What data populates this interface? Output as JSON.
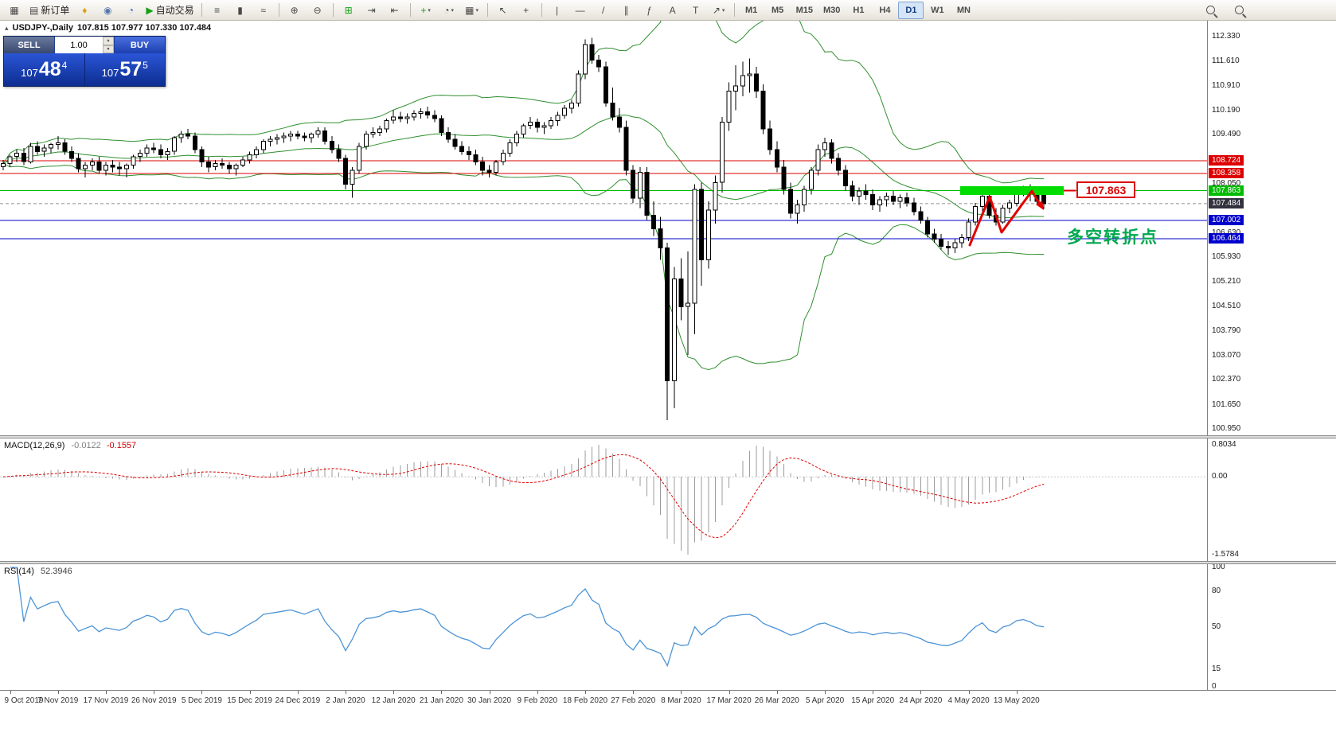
{
  "toolbar": {
    "items": [
      {
        "name": "new-chart",
        "glyph": "▦"
      },
      {
        "name": "new-order",
        "glyph": "▤",
        "label": "新订单"
      },
      {
        "name": "favorites",
        "glyph": "♦",
        "glyph_color": "#d8a018"
      },
      {
        "name": "profile",
        "glyph": "◉",
        "glyph_color": "#5577aa"
      },
      {
        "name": "community",
        "glyph": "◔",
        "glyph_color": "#3366cc"
      },
      {
        "name": "autotrading",
        "glyph": "▶",
        "glyph_color": "#16a016",
        "label": "自动交易"
      },
      {
        "sep": true
      },
      {
        "name": "bar-chart-mode",
        "glyph": "≡"
      },
      {
        "name": "candle-chart-mode",
        "glyph": "▮"
      },
      {
        "name": "line-chart-mode",
        "glyph": "≈"
      },
      {
        "sep": true
      },
      {
        "name": "zoom-in",
        "glyph": "⊕"
      },
      {
        "name": "zoom-out",
        "glyph": "⊖"
      },
      {
        "sep": true
      },
      {
        "name": "tile-windows",
        "glyph": "⊞",
        "glyph_color": "#16a016"
      },
      {
        "name": "auto-scroll",
        "glyph": "⇥"
      },
      {
        "name": "chart-shift",
        "glyph": "⇤"
      },
      {
        "sep": true
      },
      {
        "name": "indicators",
        "glyph": "+",
        "glyph_color": "#16a016",
        "caret": true
      },
      {
        "name": "periods",
        "glyph": "◔",
        "caret": true
      },
      {
        "name": "templates",
        "glyph": "▦",
        "caret": true
      },
      {
        "sep": true
      },
      {
        "name": "cursor",
        "glyph": "↖"
      },
      {
        "name": "crosshair",
        "glyph": "+"
      },
      {
        "sep": true
      },
      {
        "name": "vertical-line",
        "glyph": "|"
      },
      {
        "name": "horizontal-line",
        "glyph": "—"
      },
      {
        "name": "trendline",
        "glyph": "/"
      },
      {
        "name": "equidistant-channel",
        "glyph": "∥"
      },
      {
        "name": "fibonacci",
        "glyph": "ƒ"
      },
      {
        "name": "text",
        "glyph": "A"
      },
      {
        "name": "text-label",
        "glyph": "T"
      },
      {
        "name": "arrows",
        "glyph": "↗",
        "caret": true
      },
      {
        "sep": true
      }
    ],
    "timeframes": [
      "M1",
      "M5",
      "M15",
      "M30",
      "H1",
      "H4",
      "D1",
      "W1",
      "MN"
    ],
    "active_timeframe": "D1",
    "right_items": [
      {
        "name": "quick-search"
      },
      {
        "name": "quick-navigation"
      }
    ]
  },
  "one_click": {
    "sell_label": "SELL",
    "buy_label": "BUY",
    "volume": "1.00",
    "sell_price": {
      "int": "107",
      "dec": "48",
      "pip": "4"
    },
    "buy_price": {
      "int": "107",
      "dec": "57",
      "pip": "5"
    }
  },
  "colors": {
    "bands": "#2f8f2f",
    "hline_red": "#dd0000",
    "hline_blue": "#0000cc",
    "hline_green": "#00bb00",
    "bar_green": "#00dd00",
    "note_green": "#00a84f",
    "annotation_red": "#e00000",
    "rsi_line": "#4d94d6",
    "macd_hist": "#9c9c9c",
    "macd_signal": "#e00000",
    "bid_label_bg": "#32323f",
    "bull": "#ffffff",
    "bear": "#000000"
  },
  "chart_data": {
    "type": "candlestick",
    "symbol_title": "USDJPY-,Daily",
    "ohlc_display": "107.815 107.977 107.330 107.484",
    "price_axis": {
      "min": 100.95,
      "max": 112.33,
      "labels": [
        112.33,
        111.61,
        110.91,
        110.19,
        109.49,
        108.05,
        106.63,
        105.93,
        105.21,
        104.51,
        103.79,
        103.07,
        102.37,
        101.65,
        100.95
      ]
    },
    "hlines": [
      {
        "price": 108.724,
        "color": "#dd0000"
      },
      {
        "price": 108.358,
        "color": "#dd0000"
      },
      {
        "price": 107.863,
        "color": "#00bb00"
      },
      {
        "price": 107.002,
        "color": "#0000cc"
      },
      {
        "price": 106.464,
        "color": "#0000cc"
      }
    ],
    "bid": {
      "price": 107.484,
      "label_bg": "#32323f"
    },
    "macd": {
      "label": "MACD(12,26,9)",
      "values": [
        "-0.0122",
        "-0.1557"
      ],
      "axis": [
        "0.8034",
        "0.00",
        "-1.5784"
      ]
    },
    "rsi": {
      "label": "RSI(14)",
      "value": "52.3946",
      "axis": [
        100,
        80,
        50,
        15,
        0
      ]
    },
    "dates": [
      "9 Oct 2019",
      "7 Nov 2019",
      "17 Nov 2019",
      "26 Nov 2019",
      "5 Dec 2019",
      "15 Dec 2019",
      "24 Dec 2019",
      "2 Jan 2020",
      "12 Jan 2020",
      "21 Jan 2020",
      "30 Jan 2020",
      "9 Feb 2020",
      "18 Feb 2020",
      "27 Feb 2020",
      "8 Mar 2020",
      "17 Mar 2020",
      "26 Mar 2020",
      "5 Apr 2020",
      "15 Apr 2020",
      "24 Apr 2020",
      "4 May 2020",
      "13 May 2020"
    ],
    "annotations": {
      "resistance_price": 107.863,
      "resistance_label": "107.863",
      "note_text": "多空转折点"
    },
    "candles": [
      [
        108.55,
        108.75,
        108.45,
        108.65
      ],
      [
        108.65,
        108.9,
        108.55,
        108.85
      ],
      [
        108.85,
        109.05,
        108.7,
        108.95
      ],
      [
        108.95,
        109.1,
        108.6,
        108.7
      ],
      [
        108.7,
        109.25,
        108.65,
        109.15
      ],
      [
        109.15,
        109.3,
        108.9,
        109.0
      ],
      [
        109.0,
        109.2,
        108.85,
        109.1
      ],
      [
        109.1,
        109.25,
        108.95,
        109.2
      ],
      [
        109.2,
        109.45,
        109.05,
        109.25
      ],
      [
        109.25,
        109.35,
        108.9,
        109.0
      ],
      [
        109.0,
        109.15,
        108.7,
        108.8
      ],
      [
        108.8,
        108.95,
        108.4,
        108.5
      ],
      [
        108.5,
        108.7,
        108.25,
        108.6
      ],
      [
        108.6,
        108.8,
        108.45,
        108.7
      ],
      [
        108.7,
        108.85,
        108.35,
        108.45
      ],
      [
        108.45,
        108.7,
        108.3,
        108.6
      ],
      [
        108.6,
        108.75,
        108.4,
        108.55
      ],
      [
        108.55,
        108.7,
        108.3,
        108.5
      ],
      [
        108.5,
        108.65,
        108.25,
        108.6
      ],
      [
        108.6,
        108.9,
        108.5,
        108.85
      ],
      [
        108.85,
        109.05,
        108.7,
        108.95
      ],
      [
        108.95,
        109.2,
        108.85,
        109.1
      ],
      [
        109.1,
        109.25,
        108.95,
        109.05
      ],
      [
        109.05,
        109.2,
        108.8,
        108.9
      ],
      [
        108.9,
        109.1,
        108.75,
        109.0
      ],
      [
        109.0,
        109.45,
        108.9,
        109.4
      ],
      [
        109.4,
        109.6,
        109.25,
        109.5
      ],
      [
        109.5,
        109.65,
        109.35,
        109.45
      ],
      [
        109.45,
        109.55,
        108.95,
        109.05
      ],
      [
        109.05,
        109.15,
        108.55,
        108.7
      ],
      [
        108.7,
        108.85,
        108.4,
        108.55
      ],
      [
        108.55,
        108.75,
        108.45,
        108.65
      ],
      [
        108.65,
        108.8,
        108.5,
        108.6
      ],
      [
        108.6,
        108.7,
        108.35,
        108.5
      ],
      [
        108.5,
        108.65,
        108.3,
        108.6
      ],
      [
        108.6,
        108.85,
        108.55,
        108.75
      ],
      [
        108.75,
        109.0,
        108.65,
        108.9
      ],
      [
        108.9,
        109.15,
        108.8,
        109.05
      ],
      [
        109.05,
        109.35,
        108.95,
        109.3
      ],
      [
        109.3,
        109.45,
        109.15,
        109.35
      ],
      [
        109.35,
        109.5,
        109.2,
        109.4
      ],
      [
        109.4,
        109.55,
        109.25,
        109.45
      ],
      [
        109.45,
        109.6,
        109.3,
        109.5
      ],
      [
        109.5,
        109.6,
        109.35,
        109.45
      ],
      [
        109.45,
        109.55,
        109.3,
        109.4
      ],
      [
        109.4,
        109.55,
        109.25,
        109.5
      ],
      [
        109.5,
        109.7,
        109.4,
        109.6
      ],
      [
        109.6,
        109.7,
        109.2,
        109.3
      ],
      [
        109.3,
        109.45,
        108.95,
        109.05
      ],
      [
        109.05,
        109.2,
        108.7,
        108.8
      ],
      [
        108.8,
        108.9,
        107.9,
        108.05
      ],
      [
        108.05,
        108.55,
        107.65,
        108.45
      ],
      [
        108.45,
        109.25,
        108.35,
        109.15
      ],
      [
        109.15,
        109.6,
        109.05,
        109.5
      ],
      [
        109.5,
        109.7,
        109.4,
        109.55
      ],
      [
        109.55,
        109.75,
        109.45,
        109.65
      ],
      [
        109.65,
        109.95,
        109.55,
        109.9
      ],
      [
        109.9,
        110.2,
        109.8,
        110.0
      ],
      [
        110.0,
        110.15,
        109.85,
        109.95
      ],
      [
        109.95,
        110.1,
        109.8,
        110.0
      ],
      [
        110.0,
        110.2,
        109.9,
        110.1
      ],
      [
        110.1,
        110.25,
        109.95,
        110.15
      ],
      [
        110.15,
        110.3,
        109.95,
        110.05
      ],
      [
        110.05,
        110.2,
        109.85,
        109.95
      ],
      [
        109.95,
        110.05,
        109.45,
        109.55
      ],
      [
        109.55,
        109.7,
        109.25,
        109.35
      ],
      [
        109.35,
        109.5,
        109.05,
        109.15
      ],
      [
        109.15,
        109.3,
        108.9,
        109.0
      ],
      [
        109.0,
        109.15,
        108.75,
        108.9
      ],
      [
        108.9,
        109.05,
        108.6,
        108.7
      ],
      [
        108.7,
        108.85,
        108.3,
        108.45
      ],
      [
        108.45,
        108.6,
        108.25,
        108.4
      ],
      [
        108.4,
        108.75,
        108.3,
        108.7
      ],
      [
        108.7,
        109.05,
        108.6,
        108.95
      ],
      [
        108.95,
        109.35,
        108.85,
        109.25
      ],
      [
        109.25,
        109.6,
        109.15,
        109.5
      ],
      [
        109.5,
        109.8,
        109.4,
        109.75
      ],
      [
        109.75,
        110.0,
        109.65,
        109.85
      ],
      [
        109.85,
        109.95,
        109.55,
        109.7
      ],
      [
        109.7,
        109.85,
        109.5,
        109.75
      ],
      [
        109.75,
        110.0,
        109.65,
        109.9
      ],
      [
        109.9,
        110.15,
        109.75,
        110.05
      ],
      [
        110.05,
        110.35,
        109.95,
        110.25
      ],
      [
        110.25,
        110.5,
        110.1,
        110.4
      ],
      [
        110.4,
        111.35,
        110.3,
        111.25
      ],
      [
        111.25,
        112.25,
        111.1,
        112.1
      ],
      [
        112.1,
        112.3,
        111.55,
        111.65
      ],
      [
        111.65,
        111.8,
        111.3,
        111.45
      ],
      [
        111.45,
        111.6,
        110.3,
        110.4
      ],
      [
        110.4,
        110.85,
        109.9,
        110.0
      ],
      [
        110.0,
        110.25,
        109.55,
        109.7
      ],
      [
        109.7,
        109.9,
        108.3,
        108.45
      ],
      [
        108.45,
        108.6,
        107.5,
        107.65
      ],
      [
        107.65,
        108.55,
        107.35,
        108.4
      ],
      [
        108.4,
        108.55,
        107.0,
        107.15
      ],
      [
        107.15,
        107.55,
        106.55,
        106.75
      ],
      [
        106.75,
        107.1,
        105.85,
        106.2
      ],
      [
        106.2,
        106.35,
        101.2,
        102.35
      ],
      [
        102.35,
        105.65,
        101.55,
        105.3
      ],
      [
        105.3,
        105.9,
        104.1,
        104.5
      ],
      [
        104.5,
        106.1,
        103.1,
        104.6
      ],
      [
        104.6,
        108.05,
        103.7,
        107.9
      ],
      [
        107.9,
        108.1,
        105.1,
        105.85
      ],
      [
        105.85,
        107.55,
        105.6,
        107.3
      ],
      [
        107.3,
        108.3,
        106.9,
        108.1
      ],
      [
        108.1,
        110.0,
        107.8,
        109.85
      ],
      [
        109.85,
        111.0,
        109.6,
        110.75
      ],
      [
        110.75,
        111.5,
        110.2,
        110.9
      ],
      [
        110.9,
        111.6,
        110.6,
        111.2
      ],
      [
        111.2,
        111.7,
        110.7,
        111.25
      ],
      [
        111.25,
        111.45,
        110.55,
        110.75
      ],
      [
        110.75,
        110.95,
        109.5,
        109.65
      ],
      [
        109.65,
        109.9,
        108.9,
        109.05
      ],
      [
        109.05,
        109.3,
        108.4,
        108.55
      ],
      [
        108.55,
        108.75,
        107.75,
        107.9
      ],
      [
        107.9,
        108.1,
        107.05,
        107.2
      ],
      [
        107.2,
        107.6,
        106.9,
        107.45
      ],
      [
        107.45,
        108.0,
        107.25,
        107.9
      ],
      [
        107.9,
        108.55,
        107.75,
        108.45
      ],
      [
        108.45,
        109.2,
        108.3,
        109.05
      ],
      [
        109.05,
        109.4,
        108.85,
        109.25
      ],
      [
        109.25,
        109.35,
        108.65,
        108.8
      ],
      [
        108.8,
        108.95,
        108.3,
        108.45
      ],
      [
        108.45,
        108.6,
        107.85,
        108.0
      ],
      [
        108.0,
        108.15,
        107.55,
        107.7
      ],
      [
        107.7,
        107.95,
        107.45,
        107.85
      ],
      [
        107.85,
        108.05,
        107.6,
        107.75
      ],
      [
        107.75,
        107.9,
        107.3,
        107.45
      ],
      [
        107.45,
        107.7,
        107.25,
        107.6
      ],
      [
        107.6,
        107.8,
        107.4,
        107.7
      ],
      [
        107.7,
        107.85,
        107.45,
        107.55
      ],
      [
        107.55,
        107.75,
        107.35,
        107.65
      ],
      [
        107.65,
        107.8,
        107.4,
        107.5
      ],
      [
        107.5,
        107.65,
        107.15,
        107.25
      ],
      [
        107.25,
        107.4,
        106.9,
        107.0
      ],
      [
        107.0,
        107.1,
        106.5,
        106.6
      ],
      [
        106.6,
        106.75,
        106.35,
        106.45
      ],
      [
        106.45,
        106.6,
        106.15,
        106.25
      ],
      [
        106.25,
        106.4,
        105.99,
        106.2
      ],
      [
        106.2,
        106.45,
        106.05,
        106.35
      ],
      [
        106.35,
        106.6,
        106.2,
        106.5
      ],
      [
        106.5,
        107.05,
        106.4,
        106.95
      ],
      [
        106.95,
        107.5,
        106.85,
        107.4
      ],
      [
        107.4,
        107.8,
        107.25,
        107.7
      ],
      [
        107.7,
        107.85,
        107.05,
        107.15
      ],
      [
        107.15,
        107.35,
        106.85,
        106.95
      ],
      [
        106.95,
        107.45,
        106.9,
        107.35
      ],
      [
        107.35,
        107.6,
        107.2,
        107.5
      ],
      [
        107.5,
        107.9,
        107.4,
        107.85
      ],
      [
        107.85,
        108.0,
        107.7,
        107.95
      ],
      [
        107.95,
        108.05,
        107.55,
        107.8
      ],
      [
        107.8,
        107.95,
        107.45,
        107.55
      ],
      [
        107.815,
        107.977,
        107.33,
        107.484
      ]
    ]
  }
}
